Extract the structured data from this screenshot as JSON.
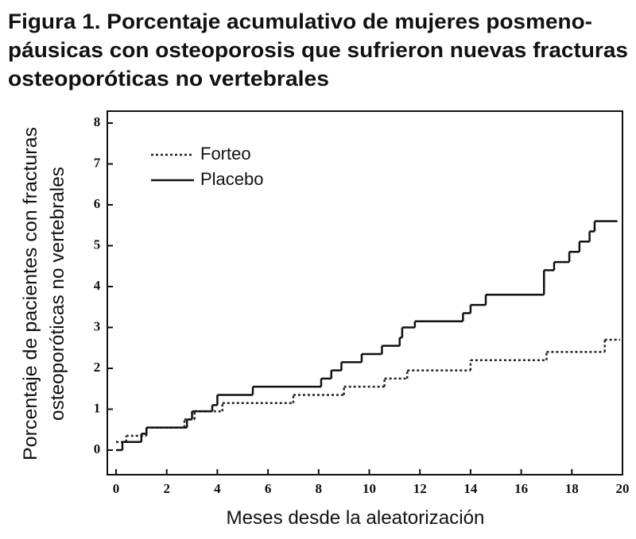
{
  "chart_data": {
    "type": "step",
    "title": [
      "Figura 1. Porcentaje acumulativo de mujeres posmeno-",
      "páusicas con osteoporosis que sufrieron nuevas fracturas",
      "osteoporóticas no vertebrales"
    ],
    "x_label": "Meses desde la aleatorización",
    "y_label": [
      "Porcentaje de pacientes con fracturas",
      "osteoporóticas no vertebrales"
    ],
    "xlim": [
      0,
      20
    ],
    "xticks": [
      0,
      2,
      4,
      6,
      8,
      10,
      12,
      14,
      16,
      18,
      20
    ],
    "ylim": [
      0,
      8
    ],
    "yticks": [
      0,
      1,
      2,
      3,
      4,
      5,
      6,
      7,
      8
    ],
    "legend": "upper left",
    "series": [
      {
        "name": "Forteo",
        "color": "#222222",
        "dash": "dotted",
        "x": [
          0,
          0.4,
          1.2,
          2.7,
          3.1,
          4.2,
          7.0,
          9.0,
          10.6,
          11.5,
          14.0,
          17.0,
          19.3,
          19.9
        ],
        "values": [
          0.2,
          0.35,
          0.55,
          0.75,
          0.95,
          1.15,
          1.35,
          1.55,
          1.75,
          1.95,
          2.2,
          2.4,
          2.7,
          2.7
        ]
      },
      {
        "name": "Placebo",
        "color": "#111111",
        "dash": "solid",
        "x": [
          0,
          0.25,
          1.0,
          1.2,
          2.8,
          3.0,
          3.8,
          4.0,
          5.4,
          8.1,
          8.5,
          8.9,
          9.7,
          10.5,
          11.2,
          11.3,
          11.8,
          13.7,
          14.0,
          14.6,
          16.9,
          17.3,
          17.9,
          18.3,
          18.7,
          18.9,
          19.8
        ],
        "values": [
          0,
          0.2,
          0.4,
          0.55,
          0.75,
          0.95,
          1.1,
          1.35,
          1.55,
          1.75,
          1.95,
          2.15,
          2.35,
          2.55,
          2.75,
          3.0,
          3.15,
          3.35,
          3.55,
          3.8,
          4.4,
          4.6,
          4.85,
          5.1,
          5.35,
          5.6,
          5.6
        ]
      }
    ]
  }
}
